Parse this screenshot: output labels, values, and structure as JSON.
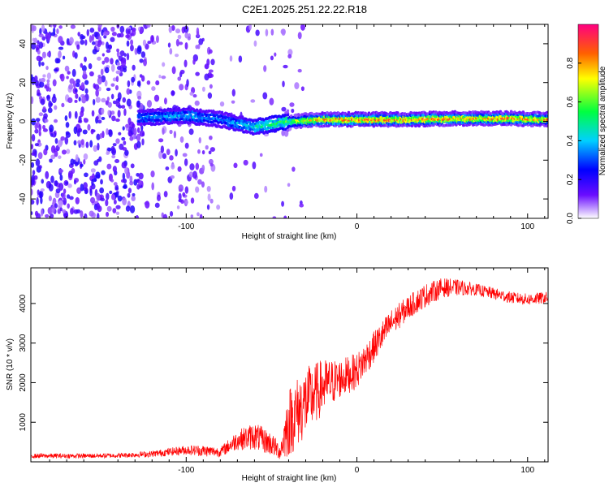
{
  "figure": {
    "title": "C2E1.2025.251.22.22.R18"
  },
  "chart_data": [
    {
      "type": "heatmap",
      "xlabel": "Height of straight line (km)",
      "ylabel": "Frequency (Hz)",
      "xlim": [
        -191,
        112
      ],
      "ylim": [
        -50,
        50
      ],
      "xticks": [
        -100,
        0,
        100
      ],
      "yticks": [
        -40,
        -20,
        0,
        20,
        40
      ],
      "colorbar": {
        "label": "Normalized spectral amplitude",
        "range": [
          0,
          1
        ],
        "ticks": [
          "0.0",
          "0.2",
          "0.4",
          "0.6",
          "0.8"
        ],
        "colors": [
          "#ffffff",
          "#6a0dff",
          "#0000ff",
          "#00d0ff",
          "#00ff40",
          "#ffff00",
          "#ff6000",
          "#ff0080"
        ]
      },
      "ridge": {
        "description_points": [
          {
            "x": -125,
            "freq": 2,
            "amp": 0.35
          },
          {
            "x": -100,
            "freq": 3,
            "amp": 0.4
          },
          {
            "x": -80,
            "freq": 1,
            "amp": 0.35
          },
          {
            "x": -60,
            "freq": -3,
            "amp": 0.45
          },
          {
            "x": -40,
            "freq": 0,
            "amp": 0.6
          },
          {
            "x": -20,
            "freq": 1,
            "amp": 0.85
          },
          {
            "x": 0,
            "freq": 1,
            "amp": 0.9
          },
          {
            "x": 30,
            "freq": 1,
            "amp": 0.85
          },
          {
            "x": 60,
            "freq": 1.5,
            "amp": 0.85
          },
          {
            "x": 90,
            "freq": 1.5,
            "amp": 0.85
          },
          {
            "x": 112,
            "freq": 1,
            "amp": 0.8
          }
        ]
      }
    },
    {
      "type": "line",
      "xlabel": "Height of straight line (km)",
      "ylabel": "SNR (10 * v/v)",
      "xlim": [
        -191,
        112
      ],
      "ylim": [
        0,
        4900
      ],
      "xticks": [
        -100,
        0,
        100
      ],
      "yticks": [
        1000,
        2000,
        3000,
        4000
      ],
      "series": [
        {
          "color": "#ff0000",
          "x": [
            -191,
            -160,
            -140,
            -120,
            -100,
            -90,
            -80,
            -70,
            -60,
            -50,
            -45,
            -40,
            -30,
            -20,
            -10,
            0,
            10,
            20,
            30,
            40,
            50,
            60,
            70,
            80,
            90,
            100,
            112
          ],
          "y": [
            150,
            150,
            160,
            200,
            300,
            280,
            250,
            550,
            650,
            450,
            250,
            1000,
            1500,
            1900,
            2100,
            2300,
            2900,
            3500,
            3900,
            4200,
            4400,
            4400,
            4350,
            4250,
            4150,
            4100,
            4150
          ],
          "noise": [
            60,
            60,
            60,
            80,
            120,
            150,
            120,
            250,
            350,
            300,
            200,
            900,
            900,
            700,
            500,
            450,
            400,
            350,
            300,
            300,
            250,
            200,
            150,
            150,
            150,
            150,
            150
          ]
        }
      ]
    }
  ]
}
